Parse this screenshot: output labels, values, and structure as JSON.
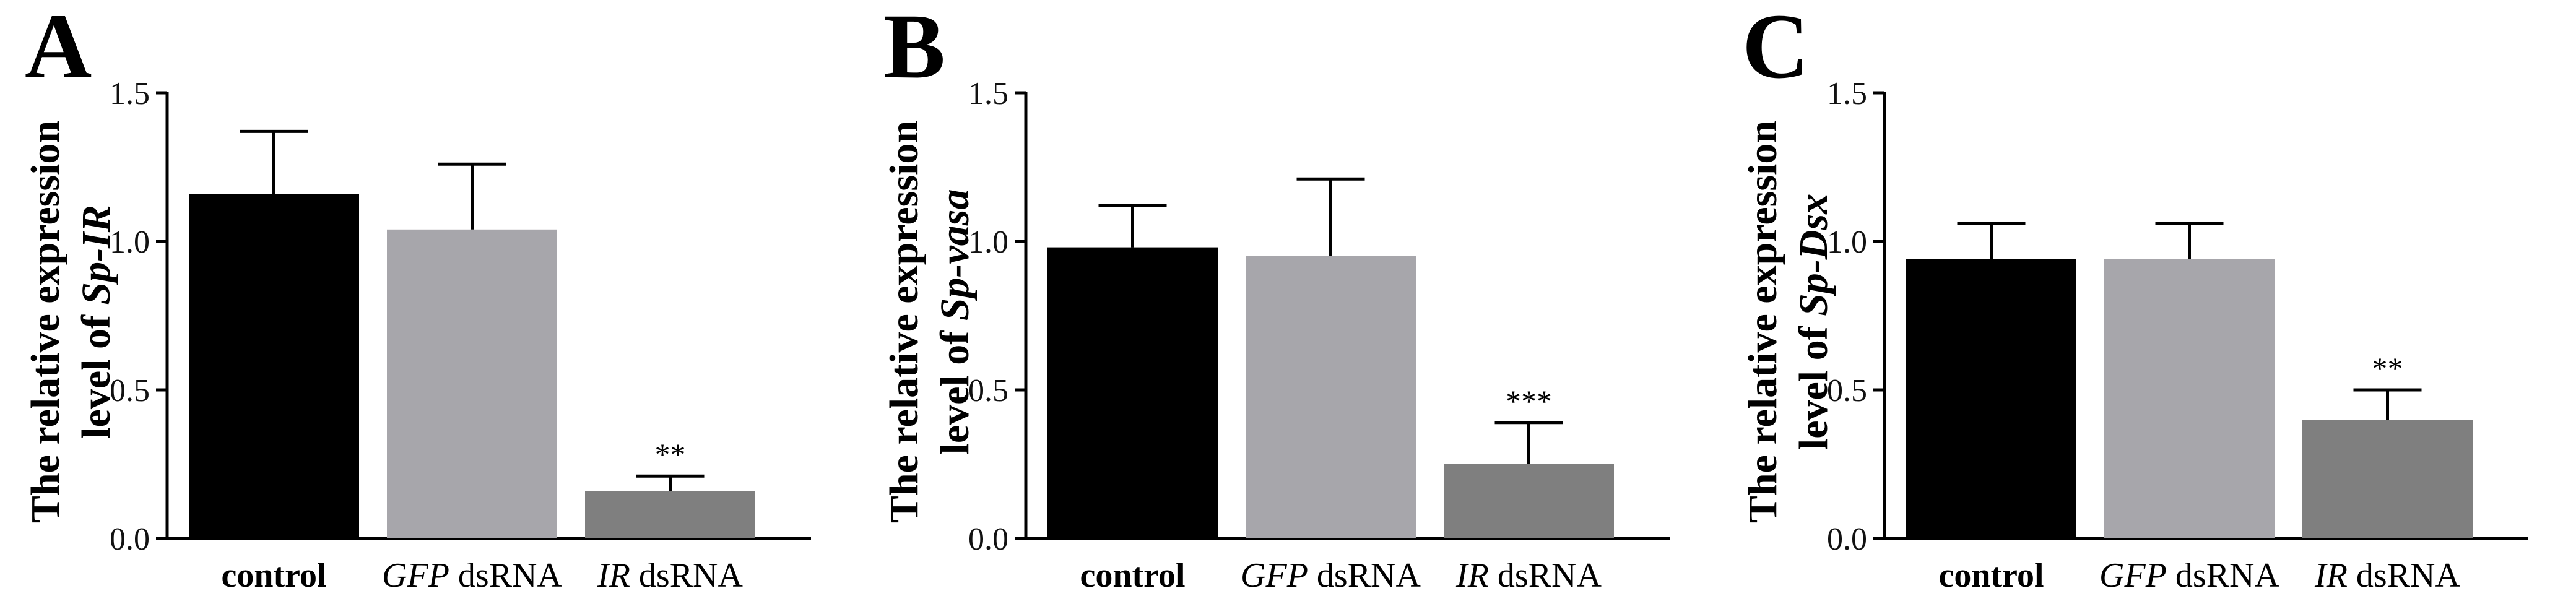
{
  "chart_data": [
    {
      "type": "bar",
      "panel_label": "A",
      "ylabel_line1": "The relative expression",
      "ylabel_line2_prefix": "level of ",
      "ylabel_gene": "Sp-IR",
      "ylim": [
        0,
        1.5
      ],
      "yticks": [
        "0.0",
        "0.5",
        "1.0",
        "1.5"
      ],
      "ytick_values": [
        0,
        0.5,
        1.0,
        1.5
      ],
      "categories": [
        {
          "italic": "",
          "plain": "control"
        },
        {
          "italic": "GFP",
          "plain": " dsRNA"
        },
        {
          "italic": "IR",
          "plain": " dsRNA"
        }
      ],
      "values": [
        1.16,
        1.04,
        0.16
      ],
      "errors": [
        0.21,
        0.22,
        0.05
      ],
      "significance": [
        "",
        "",
        "**"
      ],
      "colors": [
        "#000000",
        "#a7a6ab",
        "#7f7f7f"
      ]
    },
    {
      "type": "bar",
      "panel_label": "B",
      "ylabel_line1": "The relative expression",
      "ylabel_line2_prefix": "level of ",
      "ylabel_gene": "Sp-vasa",
      "ylim": [
        0,
        1.5
      ],
      "yticks": [
        "0.0",
        "0.5",
        "1.0",
        "1.5"
      ],
      "ytick_values": [
        0,
        0.5,
        1.0,
        1.5
      ],
      "categories": [
        {
          "italic": "",
          "plain": "control"
        },
        {
          "italic": "GFP",
          "plain": " dsRNA"
        },
        {
          "italic": "IR",
          "plain": " dsRNA"
        }
      ],
      "values": [
        0.98,
        0.95,
        0.25
      ],
      "errors": [
        0.14,
        0.26,
        0.14
      ],
      "significance": [
        "",
        "",
        "***"
      ],
      "colors": [
        "#000000",
        "#a7a6ab",
        "#7f7f7f"
      ]
    },
    {
      "type": "bar",
      "panel_label": "C",
      "ylabel_line1": "The relative expression",
      "ylabel_line2_prefix": "level of ",
      "ylabel_gene": "Sp-Dsx",
      "ylim": [
        0,
        1.5
      ],
      "yticks": [
        "0.0",
        "0.5",
        "1.0",
        "1.5"
      ],
      "ytick_values": [
        0,
        0.5,
        1.0,
        1.5
      ],
      "categories": [
        {
          "italic": "",
          "plain": "control"
        },
        {
          "italic": "GFP",
          "plain": " dsRNA"
        },
        {
          "italic": "IR",
          "plain": " dsRNA"
        }
      ],
      "values": [
        0.94,
        0.94,
        0.4
      ],
      "errors": [
        0.12,
        0.12,
        0.1
      ],
      "significance": [
        "",
        "",
        "**"
      ],
      "colors": [
        "#000000",
        "#a7a6ab",
        "#7f7f7f"
      ]
    }
  ]
}
